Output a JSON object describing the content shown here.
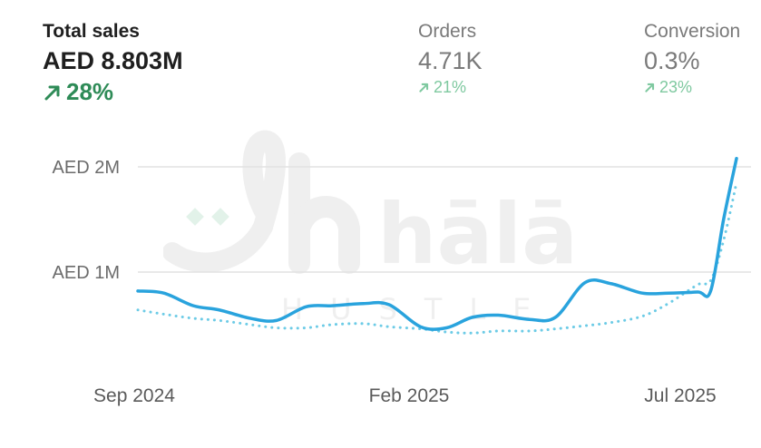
{
  "metrics": [
    {
      "label": "Total sales",
      "value": "AED 8.803M",
      "change": "28%",
      "trend_icon": "arrow-up-right-icon",
      "color": "#2e8b57"
    },
    {
      "label": "Orders",
      "value": "4.71K",
      "change": "21%",
      "trend_icon": "arrow-up-right-icon",
      "color": "#7fc9a0"
    },
    {
      "label": "Conversion",
      "value": "0.3%",
      "change": "23%",
      "trend_icon": "arrow-up-right-icon",
      "color": "#7fc9a0"
    }
  ],
  "watermark": {
    "logo": "hālāl",
    "subtitle": "HUSTLE"
  },
  "chart_data": {
    "type": "line",
    "ylim": [
      0,
      2000000
    ],
    "y_ticks": [
      {
        "value": 1000000,
        "label": "AED 1M"
      },
      {
        "value": 2000000,
        "label": "AED 2M"
      }
    ],
    "x_ticks": [
      "Sep 2024",
      "Feb 2025",
      "Jul 2025"
    ],
    "grid": true,
    "series": [
      {
        "style": "solid",
        "color": "#29a3dd",
        "x": [
          "2024-09-01",
          "2024-09-15",
          "2024-10-01",
          "2024-10-15",
          "2024-11-01",
          "2024-11-15",
          "2024-12-01",
          "2024-12-15",
          "2025-01-01",
          "2025-01-15",
          "2025-02-01",
          "2025-02-15",
          "2025-03-01",
          "2025-03-15",
          "2025-04-01",
          "2025-04-15",
          "2025-05-01",
          "2025-05-15",
          "2025-06-01",
          "2025-06-15",
          "2025-07-01",
          "2025-07-08",
          "2025-07-15",
          "2025-07-22"
        ],
        "values": [
          820000,
          800000,
          680000,
          640000,
          560000,
          540000,
          670000,
          680000,
          700000,
          690000,
          480000,
          470000,
          570000,
          590000,
          550000,
          570000,
          900000,
          890000,
          800000,
          800000,
          810000,
          820000,
          1500000,
          2080000
        ]
      },
      {
        "style": "dotted",
        "color": "#6ccbe6",
        "x": [
          "2024-09-01",
          "2024-09-15",
          "2024-10-01",
          "2024-10-15",
          "2024-11-01",
          "2024-11-15",
          "2024-12-01",
          "2024-12-15",
          "2025-01-01",
          "2025-01-15",
          "2025-02-01",
          "2025-02-15",
          "2025-03-01",
          "2025-03-15",
          "2025-04-01",
          "2025-04-15",
          "2025-05-01",
          "2025-05-15",
          "2025-06-01",
          "2025-06-15",
          "2025-07-01",
          "2025-07-08",
          "2025-07-15",
          "2025-07-22"
        ],
        "values": [
          640000,
          600000,
          560000,
          540000,
          500000,
          470000,
          470000,
          500000,
          510000,
          480000,
          460000,
          430000,
          420000,
          440000,
          440000,
          460000,
          490000,
          520000,
          580000,
          700000,
          880000,
          920000,
          1300000,
          1850000
        ]
      }
    ]
  }
}
